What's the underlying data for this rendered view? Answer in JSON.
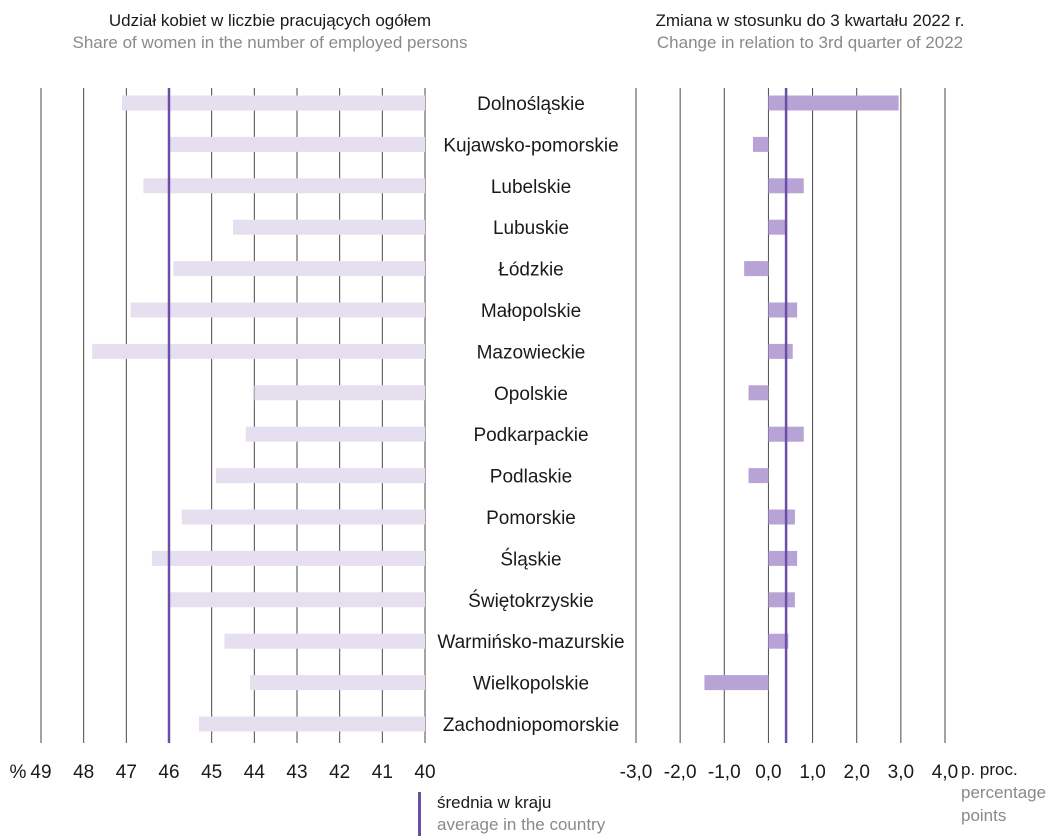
{
  "chart_data": [
    {
      "type": "bar",
      "title": "Udział kobiet w liczbie pracujących ogółem",
      "subtitle": "Share of women in the number of employed persons",
      "axis_prefix": "%",
      "orientation": "horizontal",
      "x_reversed": true,
      "xlim": [
        40,
        49
      ],
      "ticks": [
        "49",
        "48",
        "47",
        "46",
        "45",
        "44",
        "43",
        "42",
        "41",
        "40"
      ],
      "categories": [
        "Dolnośląskie",
        "Kujawsko-pomorskie",
        "Lubelskie",
        "Lubuskie",
        "Łódzkie",
        "Małopolskie",
        "Mazowieckie",
        "Opolskie",
        "Podkarpackie",
        "Podlaskie",
        "Pomorskie",
        "Śląskie",
        "Świętokrzyskie",
        "Warmińsko-mazurskie",
        "Wielkopolskie",
        "Zachodniopomorskie"
      ],
      "values": [
        47.1,
        46.0,
        46.6,
        44.5,
        45.9,
        46.9,
        47.8,
        44.0,
        44.2,
        44.9,
        45.7,
        46.4,
        46.0,
        44.7,
        44.1,
        45.3
      ],
      "reference_line": {
        "value": 46.0
      },
      "bar_color": "#e5dff0",
      "line_color": "#6b4ea6",
      "grid": true
    },
    {
      "type": "bar",
      "title": "Zmiana  w stosunku do 3 kwartału 2022 r.",
      "subtitle": "Change in relation to 3rd quarter of 2022",
      "orientation": "horizontal",
      "xlim": [
        -3,
        4
      ],
      "ticks": [
        "-3,0",
        "-2,0",
        "-1,0",
        "0,0",
        "1,0",
        "2,0",
        "3,0",
        "4,0"
      ],
      "categories": [
        "Dolnośląskie",
        "Kujawsko-pomorskie",
        "Lubelskie",
        "Lubuskie",
        "Łódzkie",
        "Małopolskie",
        "Mazowieckie",
        "Opolskie",
        "Podkarpackie",
        "Podlaskie",
        "Pomorskie",
        "Śląskie",
        "Świętokrzyskie",
        "Warmińsko-mazurskie",
        "Wielkopolskie",
        "Zachodniopomorskie"
      ],
      "values": [
        2.95,
        -0.35,
        0.8,
        0.4,
        -0.55,
        0.65,
        0.55,
        -0.45,
        0.8,
        -0.45,
        0.6,
        0.65,
        0.6,
        0.45,
        -1.45,
        0.0
      ],
      "reference_line": {
        "value": 0.4
      },
      "unit_label": "p. proc.",
      "unit_label_en": "percentage points",
      "bar_color": "#b8a3d6",
      "line_color": "#6b4ea6",
      "grid": true
    }
  ],
  "legend": {
    "label": "średnia w kraju",
    "label_en": "average in the country"
  },
  "colors": {
    "grid": "#4a4a4a",
    "average_line": "#6b4ea6",
    "share_bar": "#e5dff0",
    "change_bar": "#b8a3d6",
    "subtitle_text": "#8a8a8a"
  }
}
